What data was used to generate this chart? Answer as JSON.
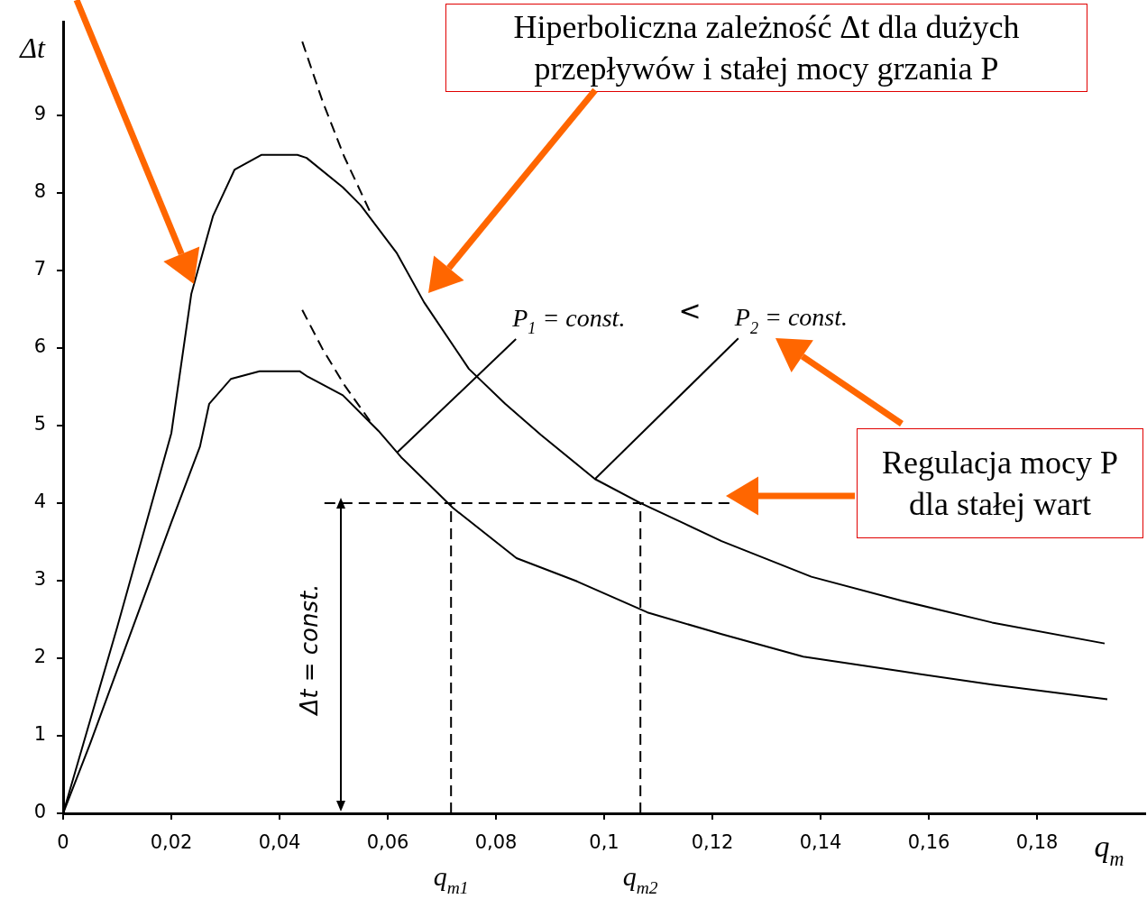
{
  "chart_data": {
    "type": "line",
    "xlabel": "q$_{m}$",
    "ylabel": "Δt",
    "xlim": [
      0,
      0.2
    ],
    "ylim": [
      0,
      10.2
    ],
    "xticks": [
      0,
      {
        "value": 0.02,
        "label": "0,02"
      },
      {
        "value": 0.04,
        "label": "0,04"
      },
      {
        "value": 0.06,
        "label": "0,06"
      },
      {
        "value": 0.08,
        "label": "0,08"
      },
      {
        "value": 0.1,
        "label": "0,1"
      },
      {
        "value": 0.12,
        "label": "0,12"
      },
      {
        "value": 0.14,
        "label": "0,14"
      },
      {
        "value": 0.16,
        "label": "0,16"
      },
      {
        "value": 0.18,
        "label": "0,18"
      }
    ],
    "yticks": [
      0,
      1,
      2,
      3,
      4,
      5,
      6,
      7,
      8,
      9
    ],
    "grid": false,
    "legend": false,
    "marker": "none",
    "series": [
      {
        "color": "#000000",
        "line_style": "solid",
        "x": [
          0,
          0.005,
          0.01,
          0.015,
          0.02,
          0.0253,
          0.027,
          0.031,
          0.0363,
          0.0437,
          0.0452,
          0.0517,
          0.0583,
          0.0625,
          0.072,
          0.0838,
          0.095,
          0.108,
          0.1217,
          0.1368,
          0.155,
          0.1717,
          0.193
        ],
        "values": [
          0,
          0.9,
          1.85,
          2.8,
          3.75,
          4.73,
          5.28,
          5.6,
          5.7,
          5.7,
          5.63,
          5.39,
          4.93,
          4.59,
          3.94,
          3.29,
          2.99,
          2.59,
          2.31,
          2.02,
          1.83,
          1.66,
          1.47
        ]
      },
      {
        "color": "#000000",
        "line_style": "solid",
        "x": [
          0,
          0.005,
          0.01,
          0.015,
          0.02,
          0.0237,
          0.0277,
          0.0317,
          0.0367,
          0.0433,
          0.045,
          0.0517,
          0.055,
          0.0617,
          0.0667,
          0.075,
          0.0817,
          0.0883,
          0.0983,
          0.1067,
          0.115,
          0.1217,
          0.1383,
          0.155,
          0.1717,
          0.1925
        ],
        "values": [
          0,
          1.2,
          2.4,
          3.65,
          4.9,
          6.7,
          7.7,
          8.3,
          8.49,
          8.49,
          8.45,
          8.07,
          7.84,
          7.22,
          6.59,
          5.73,
          5.28,
          4.88,
          4.31,
          4.0,
          3.73,
          3.51,
          3.05,
          2.74,
          2.46,
          2.19
        ]
      },
      {
        "color": "#000000",
        "line_style": "dashed",
        "x": [
          0.0442,
          0.048,
          0.052,
          0.0567
        ],
        "values": [
          9.95,
          9.17,
          8.46,
          7.76
        ]
      },
      {
        "color": "#000000",
        "line_style": "dashed",
        "x": [
          0.0442,
          0.048,
          0.052,
          0.0567
        ],
        "values": [
          6.49,
          5.98,
          5.52,
          5.06
        ]
      },
      {
        "color": "#000000",
        "line_style": "dashed",
        "x": [
          0.0483,
          0.1233
        ],
        "values": [
          4,
          4
        ]
      },
      {
        "color": "#000000",
        "line_style": "dashed",
        "x": [
          0.0717,
          0.0717
        ],
        "values": [
          0,
          4
        ]
      },
      {
        "color": "#000000",
        "line_style": "dashed",
        "x": [
          0.1067,
          0.1067
        ],
        "values": [
          0,
          4
        ]
      }
    ],
    "annotations": [
      "Hiperboliczna zależność Δt dla dużych przepływów i stałej mocy grzania P",
      "Regulacja mocy P dla stałej wart",
      "Δt = const.",
      "<",
      {
        "text": "P$_{1}$ = const.",
        "x": 0.0617,
        "y": 4.65
      },
      {
        "text": "P$_{2}$ = const.",
        "x": 0.0983,
        "y": 4.31
      },
      {
        "text": "q$_{m1}$",
        "x": 0.0717,
        "y": 0
      },
      {
        "text": "q$_{m2}$",
        "x": 0.1067,
        "y": 0
      }
    ]
  }
}
